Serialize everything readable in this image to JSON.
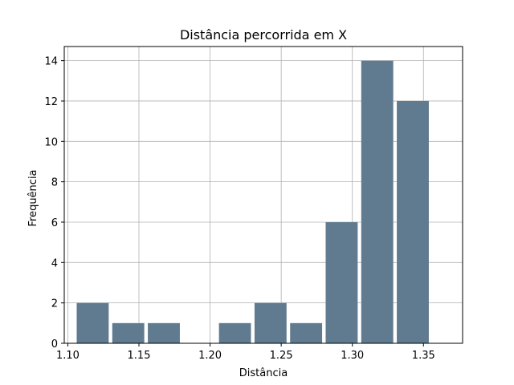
{
  "chart_data": {
    "type": "bar",
    "title": "Distância percorrida em X",
    "xlabel": "Distância",
    "ylabel": "Frequência",
    "xlim": [
      1.0975,
      1.3775
    ],
    "ylim": [
      0,
      14.7
    ],
    "xticks": [
      1.1,
      1.15,
      1.2,
      1.25,
      1.3,
      1.35
    ],
    "xtick_labels": [
      "1.10",
      "1.15",
      "1.20",
      "1.25",
      "1.30",
      "1.35"
    ],
    "yticks": [
      0,
      2,
      4,
      6,
      8,
      10,
      12,
      14
    ],
    "ytick_labels": [
      "0",
      "2",
      "4",
      "6",
      "8",
      "10",
      "12",
      "14"
    ],
    "grid": true,
    "bar_color": "#607b8f",
    "bin_width": 0.025,
    "bars": [
      {
        "x": 1.1175,
        "value": 2
      },
      {
        "x": 1.1425,
        "value": 1
      },
      {
        "x": 1.1675,
        "value": 1
      },
      {
        "x": 1.1925,
        "value": 0
      },
      {
        "x": 1.2175,
        "value": 1
      },
      {
        "x": 1.2425,
        "value": 2
      },
      {
        "x": 1.2675,
        "value": 1
      },
      {
        "x": 1.2925,
        "value": 6
      },
      {
        "x": 1.3175,
        "value": 14
      },
      {
        "x": 1.3425,
        "value": 12
      }
    ]
  }
}
